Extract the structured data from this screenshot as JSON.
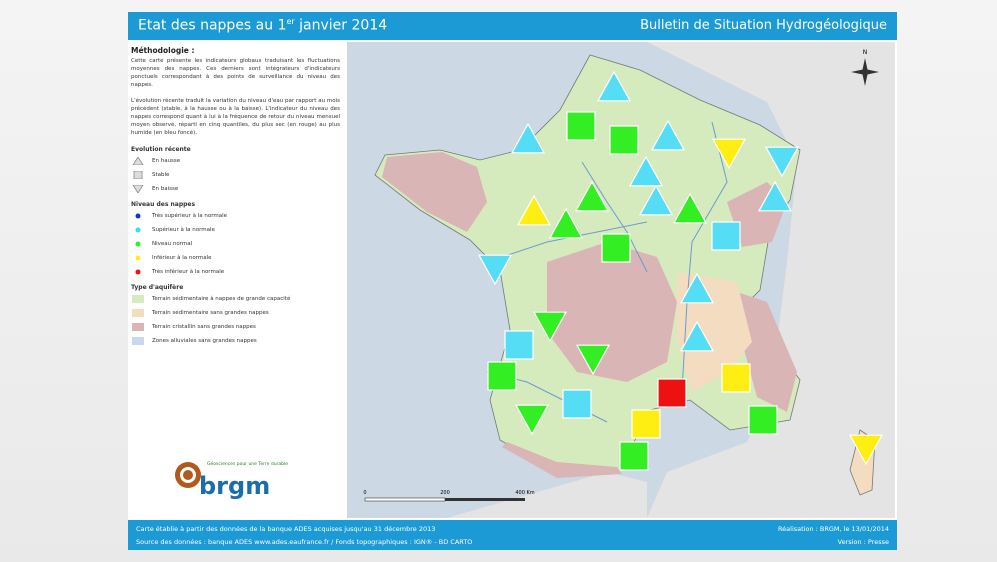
{
  "header": {
    "title": "Etat des nappes au 1",
    "title_sup": "er",
    "title_end": " janvier 2014",
    "subtitle": "Bulletin de Situation Hydrogéologique"
  },
  "methodology": {
    "heading": "Méthodologie :",
    "paragraphs": [
      "Cette carte présente les indicateurs globaux traduisant les fluctuations moyennes des nappes. Ces derniers sont intégrateurs d'indicateurs ponctuels correspondant à des points de surveillance du niveau des nappes.",
      "L'évolution récente traduit la variation du niveau d'eau par rapport au mois précédent (stable, à la hausse ou à la baisse). L'indicateur du niveau des nappes correspond quant à lui à la fréquence de retour du niveau mensuel moyen observé, réparti en cinq quantiles, du plus sec (en rouge) au plus humide (en bleu foncé)."
    ]
  },
  "legend": {
    "trend": {
      "heading": "Evolution récente",
      "items": [
        "En hausse",
        "Stable",
        "En baisse"
      ]
    },
    "level": {
      "heading": "Niveau des nappes",
      "items": [
        "Très supérieur à la normale",
        "Supérieur à la normale",
        "Niveau normal",
        "Inférieur à la normale",
        "Très inférieur à la normale"
      ]
    },
    "aquifer": {
      "heading": "Type d'aquifère",
      "items": [
        "Terrain sédimentaire à nappes de grande capacité",
        "Terrain sédimentaire sans grandes nappes",
        "Terrain cristallin sans grandes nappes",
        "Zones alluviales sans grandes nappes"
      ]
    }
  },
  "logo": {
    "tagline": "Géosciences pour une Terre durable",
    "name": "brgm"
  },
  "map": {
    "north": "N",
    "scale": [
      "0",
      "200",
      "400 Km"
    ]
  },
  "footer": {
    "left": [
      "Carte établie à partir des données de la banque ADES acquises jusqu'au 31 décembre 2013",
      "Source des données : banque ADES www.ades.eaufrance.fr / Fonds topographiques : IGN® - BD CARTO"
    ],
    "right": [
      "Réalisation : BRGM, le 13/01/2014",
      "Version : Presse"
    ]
  }
}
